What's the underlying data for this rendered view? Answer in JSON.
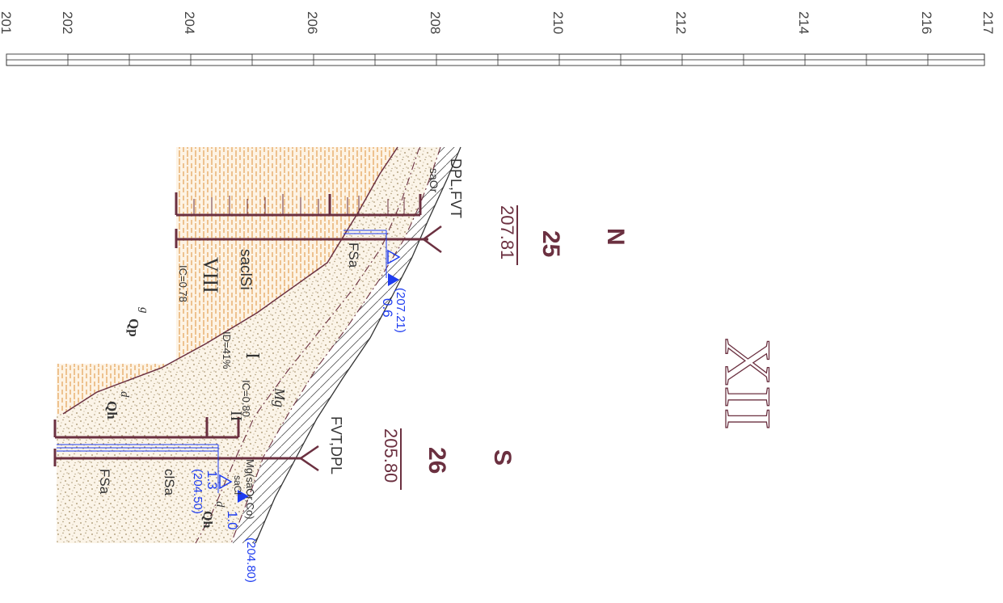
{
  "scale": {
    "ticks": [
      "201",
      "202",
      "204",
      "206",
      "208",
      "210",
      "212",
      "214",
      "216",
      "217"
    ]
  },
  "profile": {
    "title": "XII",
    "direction_start": "N",
    "direction_end": "S"
  },
  "boreholes": [
    {
      "number": "25",
      "elevation": "207.81",
      "methods": "DPL,FVT"
    },
    {
      "number": "26",
      "elevation": "205.80",
      "methods": "FVT,DPL"
    }
  ],
  "water_levels": [
    {
      "depth": "0.6",
      "elevation": "(207.21)"
    },
    {
      "depth": "1.0",
      "elevation": "(204.80)"
    },
    {
      "depth": "1.3",
      "elevation": "(204.50)"
    }
  ],
  "layers": {
    "made_ground": {
      "symbol": "Mg",
      "desc": "Mg(saOr,Co)"
    },
    "layer_ii": {
      "number": "II",
      "param": "IC=0.80"
    },
    "layer_i": {
      "number": "I",
      "param": "ID=41%",
      "origin_sup": "d",
      "origin": "Qh"
    },
    "layer_viii": {
      "number": "VIII",
      "param": "IC=0.78",
      "soil": "saclSi",
      "origin_sup": "g",
      "origin": "Qp"
    }
  },
  "soil_labels": {
    "sa_or": "saOr",
    "fsa_1": "FSa",
    "sacl": "saCl",
    "clsa": "clSa",
    "fsa_2": "FSa",
    "dqh_sup": "d",
    "dqh": "Qh"
  },
  "colors": {
    "scheme_line": "#6b3040",
    "water": "#1e3cf0",
    "sand_dot": "#a08c64",
    "clay_hatch": "#e0903a",
    "hatch": "#555555"
  }
}
